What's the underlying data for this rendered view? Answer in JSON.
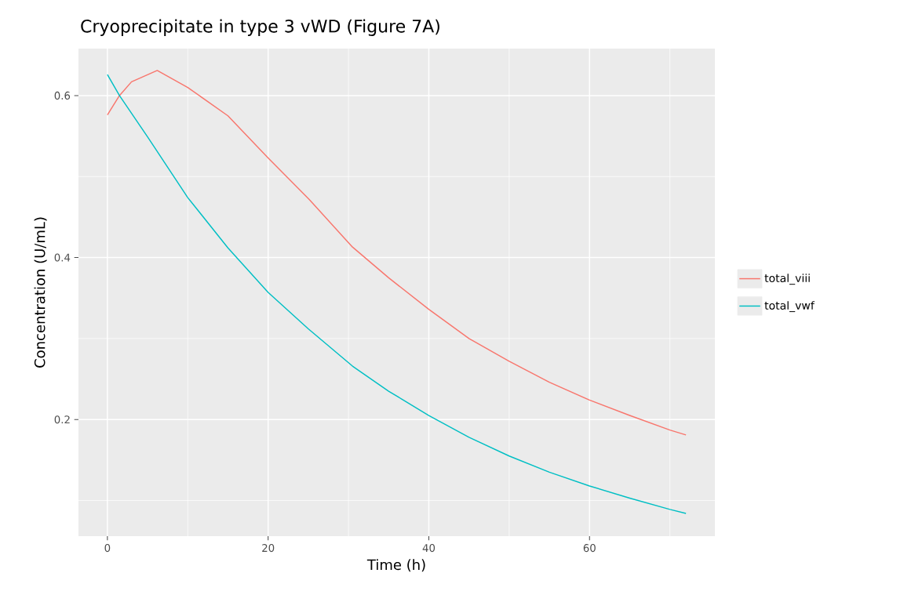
{
  "chart_data": {
    "type": "line",
    "title": "Cryoprecipitate in type 3 vWD (Figure 7A)",
    "xlabel": "Time (h)",
    "ylabel": "Concentration (U/mL)",
    "xlim": [
      -3.6,
      75.6
    ],
    "ylim": [
      0.056,
      0.658
    ],
    "xticks": [
      0,
      20,
      40,
      60
    ],
    "yticks": [
      0.2,
      0.4,
      0.6
    ],
    "grid": true,
    "legend": "right",
    "line_style": "solid",
    "marker": "none",
    "series": [
      {
        "name": "total_viii",
        "color": "#F8766D",
        "x": [
          0,
          1.5,
          3,
          6.2,
          10,
          15,
          20,
          25,
          30.5,
          35,
          40,
          45,
          50,
          55,
          60,
          65,
          70,
          72
        ],
        "values": [
          0.576,
          0.6,
          0.617,
          0.631,
          0.61,
          0.575,
          0.523,
          0.473,
          0.413,
          0.375,
          0.336,
          0.3,
          0.272,
          0.246,
          0.224,
          0.205,
          0.187,
          0.181
        ]
      },
      {
        "name": "total_vwf",
        "color": "#00BFC4",
        "x": [
          0,
          1.5,
          5,
          10,
          15,
          20,
          25,
          30.5,
          35,
          40,
          45,
          50,
          55,
          60,
          65,
          70,
          72
        ],
        "values": [
          0.626,
          0.6,
          0.549,
          0.474,
          0.412,
          0.357,
          0.312,
          0.266,
          0.235,
          0.205,
          0.178,
          0.155,
          0.135,
          0.118,
          0.103,
          0.089,
          0.084
        ]
      }
    ]
  }
}
